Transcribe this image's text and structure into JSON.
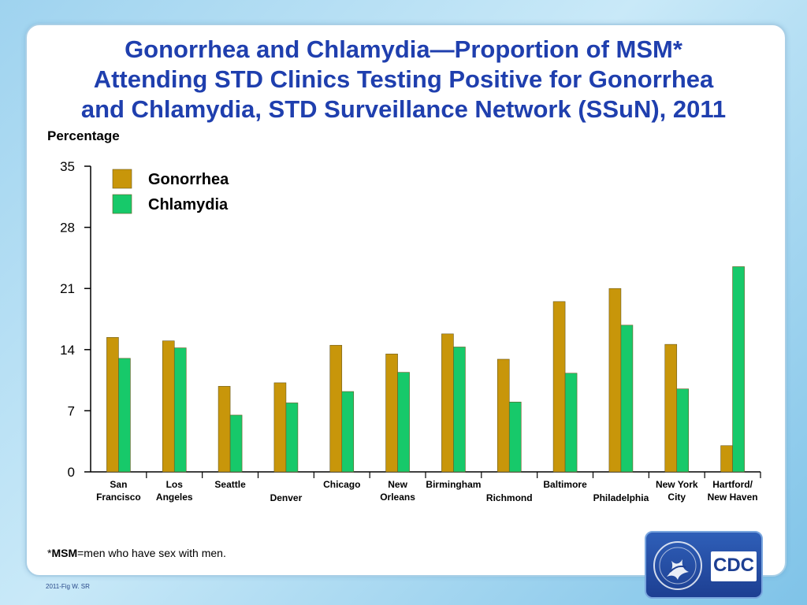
{
  "slide": {
    "title_lines": [
      "Gonorrhea and Chlamydia—Proportion of MSM*",
      "Attending STD Clinics Testing Positive for Gonorrhea",
      "and Chlamydia, STD Surveillance Network (SSuN), 2011"
    ],
    "footnote_term": "MSM",
    "footnote_prefix": "*",
    "footnote_rest": "=men who have sex with men.",
    "fig_id": "2011-Fig W.  SR",
    "logo_text": "CDC",
    "logo_icon": "hhs-seal-icon"
  },
  "colors": {
    "gonorrhea": "#c8960a",
    "chlamydia": "#17c96a",
    "title": "#1f3fae"
  },
  "chart_data": {
    "type": "bar",
    "title": "",
    "xlabel": "",
    "ylabel": "Percentage",
    "ylim": [
      0,
      35
    ],
    "yticks": [
      0,
      7,
      14,
      21,
      28,
      35
    ],
    "grid": false,
    "legend_position": "top-left",
    "categories": [
      [
        "San",
        "Francisco"
      ],
      [
        "Los",
        "Angeles"
      ],
      [
        "Seattle"
      ],
      [
        "Denver"
      ],
      [
        "Chicago"
      ],
      [
        "New",
        "Orleans"
      ],
      [
        "Birmingham"
      ],
      [
        "Richmond"
      ],
      [
        "Baltimore"
      ],
      [
        "Philadelphia"
      ],
      [
        "New York",
        "City"
      ],
      [
        "Hartford/",
        "New Haven"
      ]
    ],
    "label_positions": [
      "top",
      "top",
      "top",
      "bottom",
      "top",
      "top",
      "top",
      "bottom",
      "top",
      "bottom",
      "top",
      "top"
    ],
    "series": [
      {
        "name": "Gonorrhea",
        "values": [
          15.4,
          15.0,
          9.8,
          10.2,
          14.5,
          13.5,
          15.8,
          12.9,
          19.5,
          21.0,
          14.6,
          3.0
        ]
      },
      {
        "name": "Chlamydia",
        "values": [
          13.0,
          14.2,
          6.5,
          7.9,
          9.2,
          11.4,
          14.3,
          8.0,
          11.3,
          16.8,
          9.5,
          23.5
        ]
      }
    ]
  }
}
